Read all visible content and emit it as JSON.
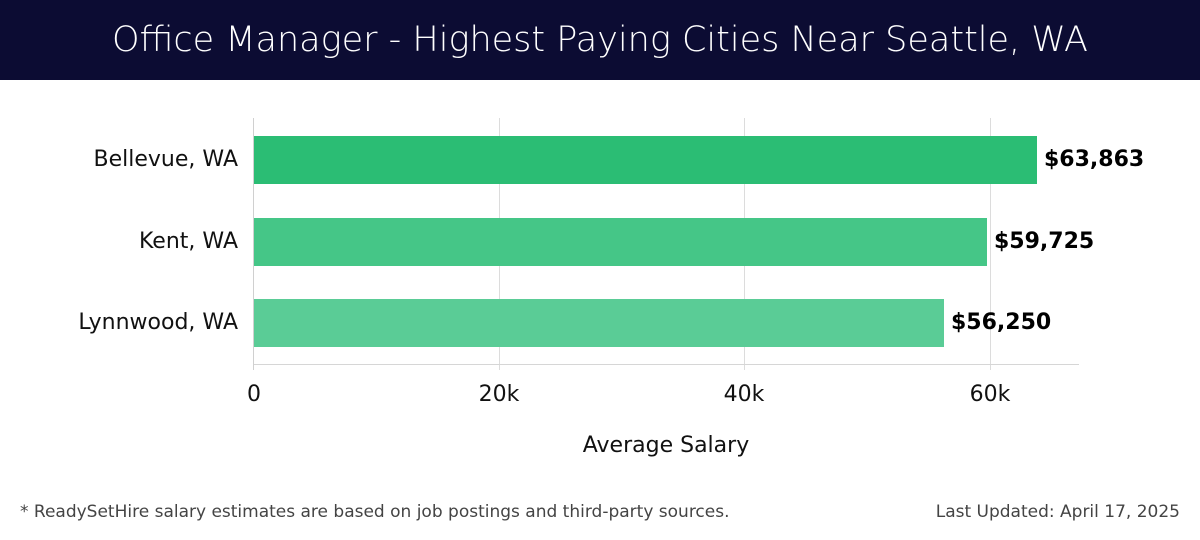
{
  "header": {
    "title": "Office Manager - Highest Paying Cities Near Seattle, WA",
    "background_color": "#0c0c33"
  },
  "chart_data": {
    "type": "bar",
    "orientation": "horizontal",
    "title": "Office Manager - Highest Paying Cities Near Seattle, WA",
    "categories": [
      "Bellevue, WA",
      "Kent, WA",
      "Lynnwood, WA"
    ],
    "values": [
      63863,
      59725,
      56250
    ],
    "value_labels": [
      "$63,863",
      "$59,725",
      "$56,250"
    ],
    "bar_colors": [
      "#2bbd74",
      "#45c687",
      "#5acc96"
    ],
    "xlabel": "Average Salary",
    "ylabel": "",
    "xlim": [
      0,
      67300
    ],
    "x_ticks": [
      0,
      20000,
      40000,
      60000
    ],
    "x_tick_labels": [
      "0",
      "20k",
      "40k",
      "60k"
    ],
    "grid": "vertical",
    "legend": "none"
  },
  "footer": {
    "footnote": "* ReadySetHire salary estimates are based on job postings and third-party sources.",
    "last_updated": "Last Updated: April 17, 2025"
  }
}
